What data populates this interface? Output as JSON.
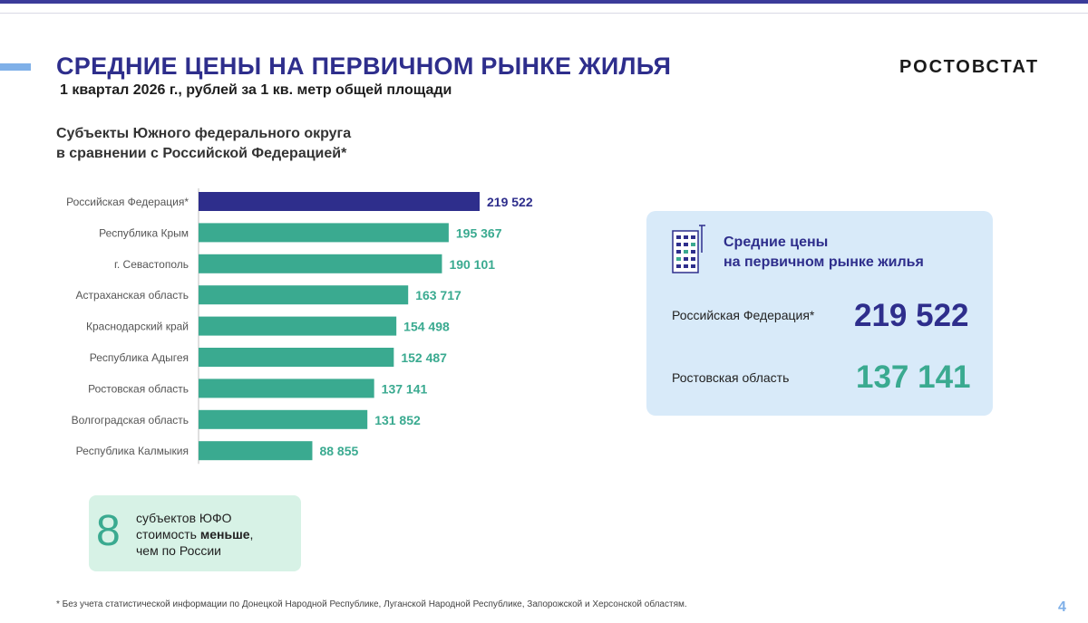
{
  "header": {
    "title": "СРЕДНИЕ ЦЕНЫ НА ПЕРВИЧНОМ РЫНКЕ ЖИЛЬЯ",
    "subtitle": "1 квартал 2026 г., рублей за 1 кв. метр общей площади",
    "brand": "РОСТОВСТАТ"
  },
  "section": {
    "line1": "Субъекты Южного федерального округа",
    "line2": "в сравнении с Российской Федерацией*"
  },
  "chart_data": {
    "type": "bar",
    "orientation": "horizontal",
    "categories": [
      "Российская Федерация*",
      "Республика Крым",
      "г. Севастополь",
      "Астраханская область",
      "Краснодарский край",
      "Республика Адыгея",
      "Ростовская область",
      "Волгоградская область",
      "Республика Калмыкия"
    ],
    "values": [
      219522,
      195367,
      190101,
      163717,
      154498,
      152487,
      137141,
      131852,
      88855
    ],
    "value_labels": [
      "219 522",
      "195 367",
      "190 101",
      "163 717",
      "154 498",
      "152 487",
      "137 141",
      "131 852",
      "88 855"
    ],
    "highlight_index": 0,
    "colors": {
      "highlight": "#2e2e8c",
      "bar": "#3aaa90",
      "highlight_label": "#2e2e8c",
      "label": "#3aaa90"
    },
    "title": "",
    "xlabel": "",
    "ylabel": "",
    "xlim": [
      0,
      219522
    ],
    "grid": false,
    "legend": "none"
  },
  "info_card": {
    "icon": "building-icon",
    "title_line1": "Средние цены",
    "title_line2": "на первичном рынке жилья",
    "rows": [
      {
        "label": "Российская Федерация*",
        "value": "219 522",
        "color": "#2e2e8c"
      },
      {
        "label": "Ростовская область",
        "value": "137 141",
        "color": "#3aaa90"
      }
    ]
  },
  "count_box": {
    "number": "8",
    "line1": "субъектов  ЮФО",
    "line2_prefix": "стоимость ",
    "line2_bold": "меньше",
    "line2_suffix": ",",
    "line3": "чем по России"
  },
  "footnote": "* Без учета статистической информации по Донецкой Народной Республике, Луганской Народной Республике, Запорожской и Херсонской областям.",
  "page_number": "4"
}
